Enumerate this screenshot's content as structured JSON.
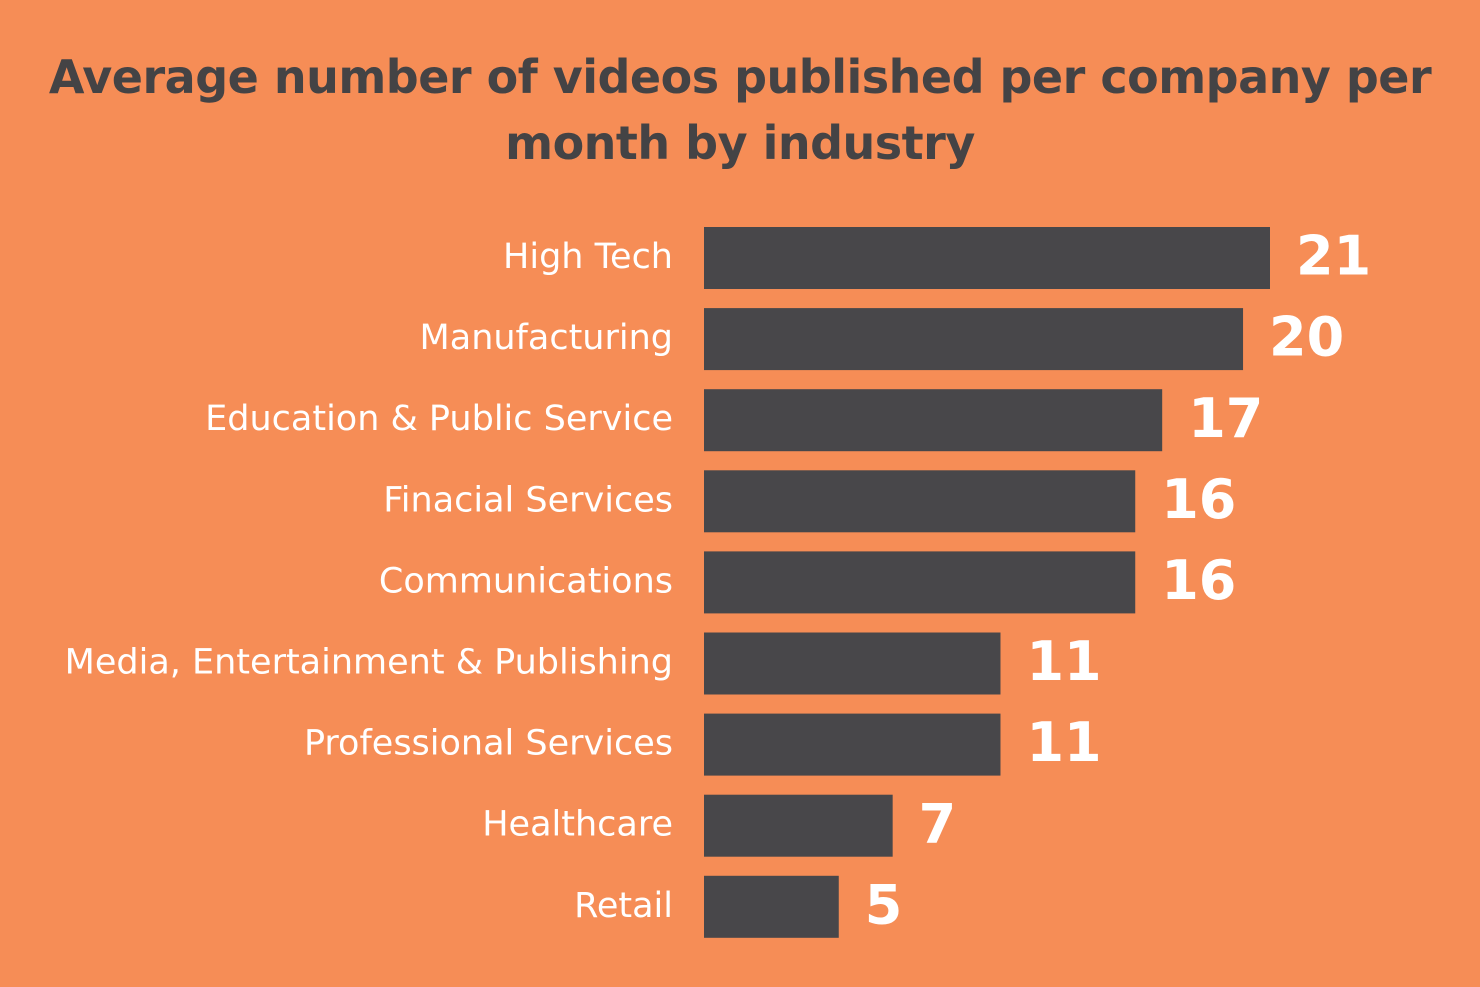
{
  "chart_data": {
    "type": "bar",
    "title": "Average number of videos published per company per month by industry",
    "categories": [
      "High Tech",
      "Manufacturing",
      "Education & Public Service",
      "Finacial Services",
      "Communications",
      "Media, Entertainment & Publishing",
      "Professional Services",
      "Healthcare",
      "Retail"
    ],
    "values": [
      21,
      20,
      17,
      16,
      16,
      11,
      11,
      7,
      5
    ],
    "color": "#48474a"
  }
}
